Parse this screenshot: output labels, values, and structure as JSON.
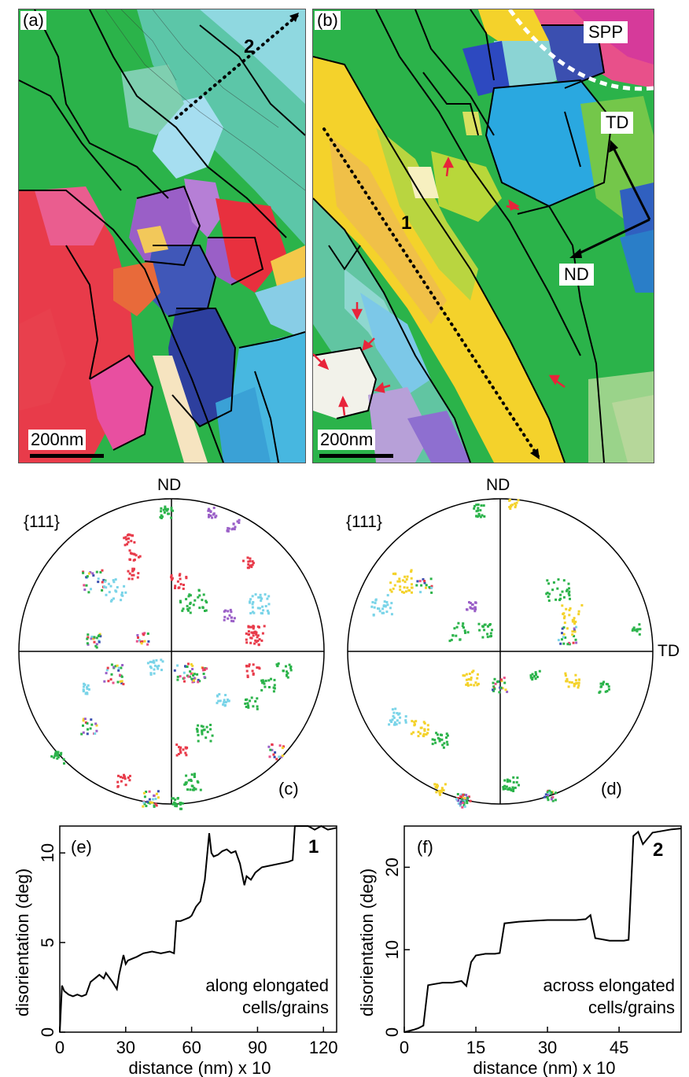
{
  "figure": {
    "panel_a": {
      "label": "(a)",
      "scale_bar": "200nm",
      "line_label": "2"
    },
    "panel_b": {
      "label": "(b)",
      "scale_bar": "200nm",
      "line_label": "1",
      "spp_label": "SPP",
      "td_label": "TD",
      "nd_label": "ND"
    },
    "panel_c": {
      "label": "(c)",
      "family": "{111}",
      "axis_top": "ND"
    },
    "panel_d": {
      "label": "(d)",
      "family": "{111}",
      "axis_top": "ND",
      "axis_right": "TD"
    },
    "panel_e": {
      "label": "(e)",
      "line_id": "1",
      "note_line1": "along elongated",
      "note_line2": "cells/grains"
    },
    "panel_f": {
      "label": "(f)",
      "line_id": "2",
      "note_line1": "across elongated",
      "note_line2": "cells/grains"
    }
  },
  "colors": {
    "green": "#2bb34a",
    "red": "#e83b4a",
    "blue": "#3b4fb0",
    "yellow": "#f4d22b",
    "cyan": "#7ad4e8",
    "purple": "#9a5fc7",
    "pink": "#e8508a",
    "boundary": "#000000"
  },
  "chart_data": [
    {
      "id": "e",
      "type": "line",
      "xlabel": "distance  (nm) x 10",
      "ylabel": "disorientation (deg)",
      "xlim": [
        0,
        126
      ],
      "ylim": [
        0,
        11.5
      ],
      "xticks": [
        0,
        30,
        60,
        90,
        120
      ],
      "yticks": [
        0,
        5,
        10
      ],
      "series": [
        {
          "x": [
            0,
            1,
            2,
            4,
            6,
            8,
            10,
            12,
            14,
            16,
            18,
            20,
            21,
            24,
            26,
            27,
            29,
            30,
            31,
            33,
            35,
            38,
            42,
            46,
            50,
            52,
            53,
            55,
            57,
            59,
            60,
            62,
            64,
            66,
            68,
            69,
            70,
            72,
            74,
            76,
            78,
            80,
            82,
            84,
            85,
            87,
            89,
            92,
            96,
            100,
            104,
            106,
            107,
            110,
            113,
            116,
            119,
            122,
            126
          ],
          "y": [
            0,
            2.6,
            2.3,
            2.1,
            2.0,
            2.1,
            2.0,
            2.1,
            2.8,
            3.0,
            3.2,
            3.0,
            3.3,
            2.8,
            2.4,
            3.2,
            4.3,
            3.8,
            4.0,
            4.1,
            4.2,
            4.4,
            4.5,
            4.4,
            4.5,
            4.4,
            6.2,
            6.2,
            6.3,
            6.4,
            6.5,
            7.0,
            7.3,
            8.5,
            11.1,
            10.0,
            9.8,
            9.9,
            10.1,
            10.2,
            10.0,
            10.1,
            9.4,
            8.2,
            8.7,
            8.5,
            8.9,
            9.2,
            9.3,
            9.4,
            9.5,
            9.6,
            11.5,
            11.5,
            11.6,
            11.3,
            11.5,
            11.3,
            11.4
          ]
        }
      ]
    },
    {
      "id": "f",
      "type": "line",
      "xlabel": "distance  (nm) x 10",
      "ylabel": "disorientation (deg)",
      "xlim": [
        0,
        58
      ],
      "ylim": [
        0,
        25
      ],
      "xticks": [
        0,
        15,
        30,
        45
      ],
      "yticks": [
        0,
        10,
        20
      ],
      "series": [
        {
          "x": [
            0,
            2,
            3,
            4,
            5,
            6,
            8,
            10,
            12,
            13,
            14,
            15,
            17,
            19,
            20,
            21,
            24,
            27,
            30,
            33,
            36,
            38,
            39,
            40,
            43,
            46,
            47,
            48,
            49,
            50,
            52,
            54,
            56,
            58
          ],
          "y": [
            0,
            0.3,
            0.5,
            0.8,
            5.7,
            5.8,
            6.0,
            6.0,
            6.2,
            5.6,
            8.5,
            9.3,
            9.5,
            9.5,
            9.6,
            13.2,
            13.4,
            13.5,
            13.6,
            13.6,
            13.6,
            13.7,
            14.2,
            11.4,
            11.1,
            11.1,
            11.2,
            23.8,
            24.3,
            22.8,
            24.2,
            24.4,
            24.6,
            24.7
          ]
        }
      ]
    }
  ]
}
